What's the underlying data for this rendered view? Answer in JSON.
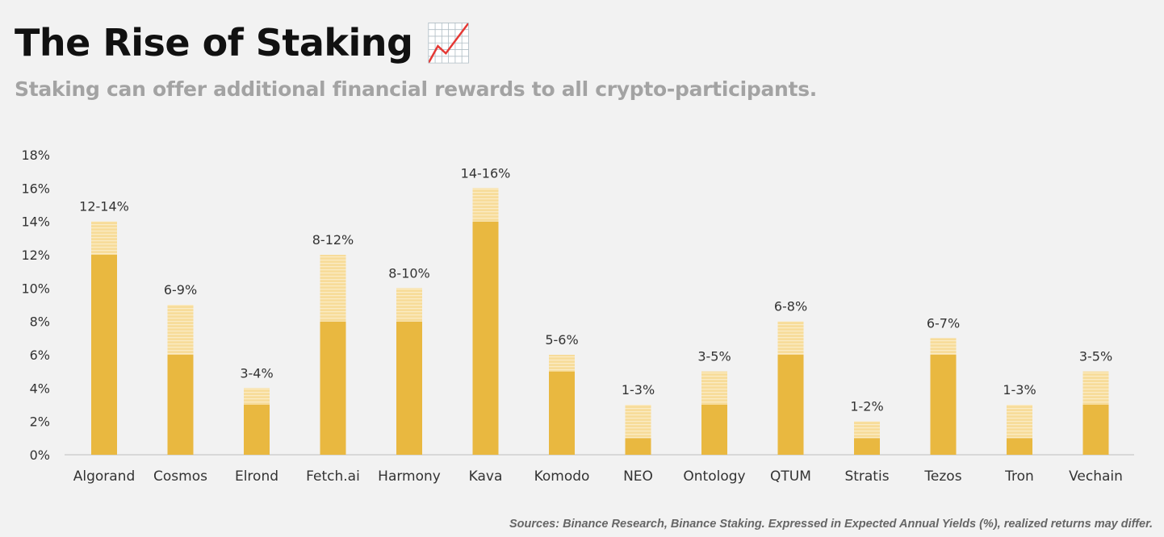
{
  "header": {
    "title": "The Rise of Staking",
    "title_icon": "chart-increasing-emoji",
    "title_emoji": "📈",
    "subtitle": "Staking can offer additional financial rewards to all crypto-participants."
  },
  "footer": {
    "source": "Sources: Binance Research, Binance Staking. Expressed in Expected Annual Yields (%), realized returns may differ."
  },
  "colors": {
    "base": "#e9b840",
    "range": "#f7dc9a",
    "stripe": "#fbecc6",
    "axis": "#d0d0d0",
    "text": "#333333"
  },
  "chart_data": {
    "type": "bar",
    "stacked": true,
    "categories": [
      "Algorand",
      "Cosmos",
      "Elrond",
      "Fetch.ai",
      "Harmony",
      "Kava",
      "Komodo",
      "NEO",
      "Ontology",
      "QTUM",
      "Stratis",
      "Tezos",
      "Tron",
      "Vechain"
    ],
    "series": [
      {
        "values": [
          12,
          6,
          3,
          8,
          8,
          14,
          5,
          1,
          3,
          6,
          1,
          6,
          1,
          3
        ]
      },
      {
        "values": [
          2,
          3,
          1,
          4,
          2,
          2,
          1,
          2,
          2,
          2,
          1,
          1,
          2,
          2
        ]
      }
    ],
    "data_labels": [
      "12-14%",
      "6-9%",
      "3-4%",
      "8-12%",
      "8-10%",
      "14-16%",
      "5-6%",
      "1-3%",
      "3-5%",
      "6-8%",
      "1-2%",
      "6-7%",
      "1-3%",
      "3-5%"
    ],
    "yticks": [
      "0%",
      "2%",
      "4%",
      "6%",
      "8%",
      "10%",
      "12%",
      "14%",
      "16%",
      "18%"
    ],
    "ylim": [
      0,
      18
    ],
    "grid": false,
    "legend": "none"
  }
}
